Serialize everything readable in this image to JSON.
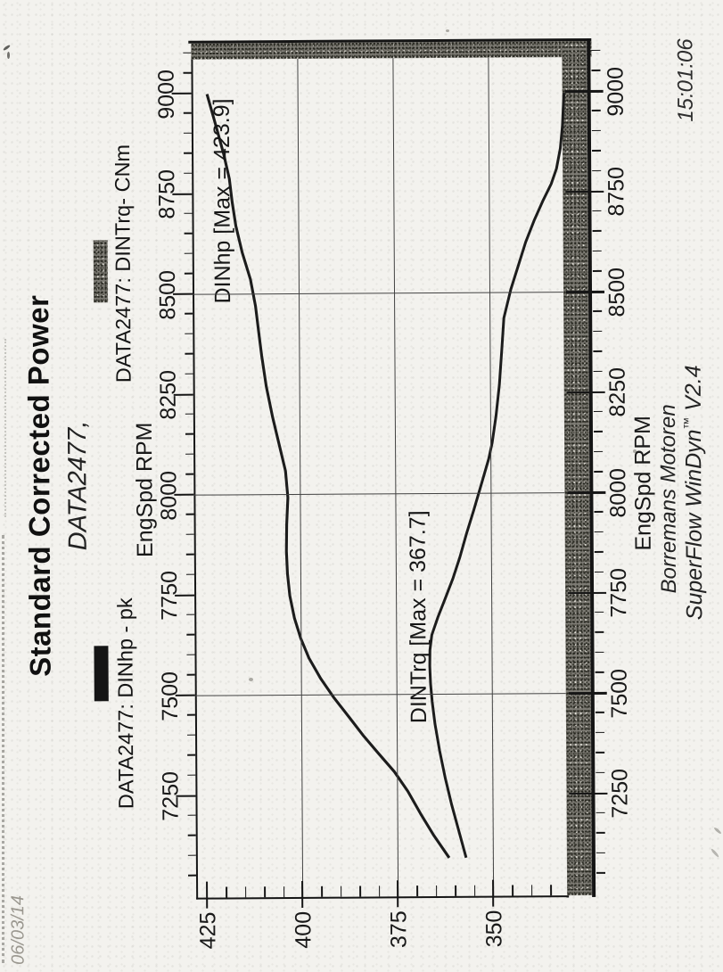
{
  "page": {
    "title": "Standard Corrected Power",
    "subtitle": "DATA2477,",
    "date": "06/03/14",
    "time": "15:01:06",
    "footer_line1": "Borremans Motoren",
    "footer_line2_pre": "SuperFlow WinDyn",
    "footer_line2_tm": "™",
    "footer_line2_post": " V2.4"
  },
  "legend": [
    {
      "label": "DATA2477: DINhp - pk",
      "swatch": "solid-black",
      "color": "#151515"
    },
    {
      "label": "DATA2477: DINTrq- CNm",
      "swatch": "speckled-gray",
      "color": "#7d7b74"
    }
  ],
  "axes": {
    "x_title_top": "EngSpd  RPM",
    "x_title_bottom": "EngSpd  RPM",
    "rpm_ticks": [
      "7250",
      "7500",
      "7750",
      "8000",
      "8250",
      "8500",
      "8750",
      "9000"
    ],
    "value_ticks": [
      "425",
      "400",
      "375",
      "350"
    ]
  },
  "annotations": {
    "hp_max": "DINhp  [Max = 423.9]",
    "trq_max": "DINTrq [Max = 367.7]"
  },
  "chart_data": {
    "type": "line",
    "title": "Standard Corrected Power",
    "xlabel": "EngSpd RPM",
    "ylabel": "",
    "x": [
      7100,
      7250,
      7400,
      7500,
      7600,
      7700,
      7800,
      7900,
      8000,
      8100,
      8200,
      8300,
      8400,
      8500,
      8600,
      8700,
      8800,
      8900,
      9000
    ],
    "series": [
      {
        "name": "DATA2477: DINhp - pk",
        "values": [
          361,
          371,
          382,
          390,
          396,
          400,
          402,
          402,
          403,
          405,
          407,
          409,
          411,
          413,
          416,
          418,
          419,
          421,
          423.9
        ],
        "max_label": 423.9
      },
      {
        "name": "DATA2477: DINTrq- CNm",
        "values": [
          358,
          362,
          365,
          367,
          367.7,
          366,
          362,
          358,
          354,
          351,
          349,
          348,
          347,
          345,
          342,
          338,
          335,
          333,
          332
        ],
        "max_label": 367.7
      }
    ],
    "xlim": [
      7000,
      9125
    ],
    "ylim": [
      324,
      428
    ],
    "x_major_ticks_every": 250,
    "x_gridlines": [
      7500,
      8000,
      8500
    ],
    "y_major_ticks": [
      425,
      400,
      375,
      350
    ],
    "y_gridlines": [
      400,
      375,
      350
    ],
    "grid": true,
    "legend_position": "top",
    "orientation_note": "landscape chart scanned rotated 90deg CCW on portrait page"
  }
}
